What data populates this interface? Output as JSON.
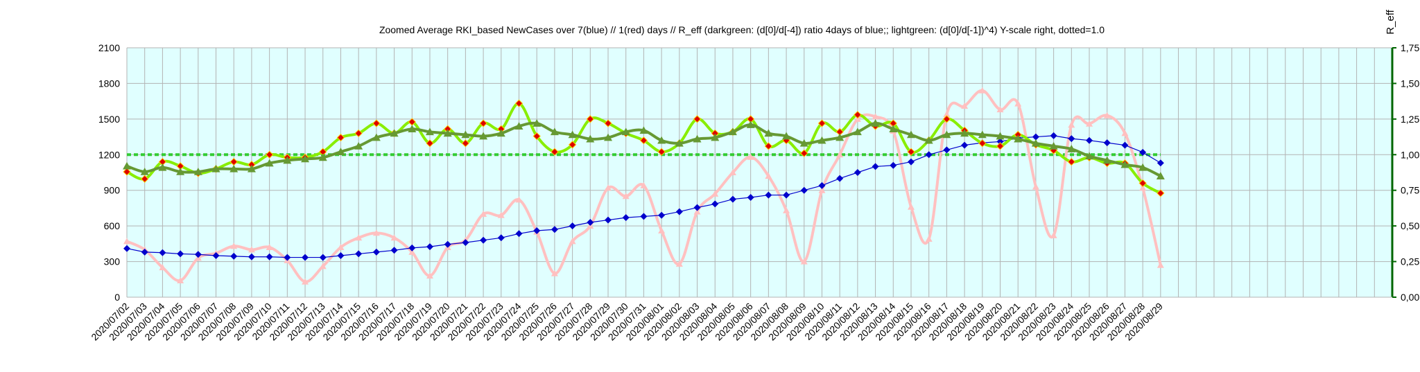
{
  "chart_data": {
    "type": "line",
    "title": "Zoomed Average RKI_based NewCases over 7(blue) // 1(red) days //  R_eff (darkgreen: (d[0]/d[-4]) ratio 4days of blue;; lightgreen: (d[0]/d[-1])^4) Y-scale right, dotted=1.0",
    "xlabel": "",
    "ylabel": "",
    "y2label": "R_eff",
    "ylim": [
      0,
      2100
    ],
    "y2lim": [
      0,
      1.75
    ],
    "yticks": [
      "0",
      "300",
      "600",
      "900",
      "1200",
      "1500",
      "1800",
      "2100"
    ],
    "y2ticks": [
      "0,00",
      "0,25",
      "0,50",
      "0,75",
      "1,00",
      "1,25",
      "1,50",
      "1,75"
    ],
    "grid": true,
    "background": "#e0ffff",
    "categories": [
      "2020/07/02",
      "2020/07/03",
      "2020/07/04",
      "2020/07/05",
      "2020/07/06",
      "2020/07/07",
      "2020/07/08",
      "2020/07/09",
      "2020/07/10",
      "2020/07/11",
      "2020/07/12",
      "2020/07/13",
      "2020/07/14",
      "2020/07/15",
      "2020/07/16",
      "2020/07/17",
      "2020/07/18",
      "2020/07/19",
      "2020/07/20",
      "2020/07/21",
      "2020/07/22",
      "2020/07/23",
      "2020/07/24",
      "2020/07/25",
      "2020/07/26",
      "2020/07/27",
      "2020/07/28",
      "2020/07/29",
      "2020/07/30",
      "2020/07/31",
      "2020/08/01",
      "2020/08/02",
      "2020/08/03",
      "2020/08/04",
      "2020/08/05",
      "2020/08/06",
      "2020/08/07",
      "2020/08/08",
      "2020/08/09",
      "2020/08/10",
      "2020/08/11",
      "2020/08/12",
      "2020/08/13",
      "2020/08/14",
      "2020/08/15",
      "2020/08/16",
      "2020/08/17",
      "2020/08/18",
      "2020/08/19",
      "2020/08/20",
      "2020/08/21",
      "2020/08/22",
      "2020/08/23",
      "2020/08/24",
      "2020/08/25",
      "2020/08/26",
      "2020/08/27",
      "2020/08/28",
      "2020/08/29"
    ],
    "empty_categories_after": 12,
    "reference_line": {
      "axis": "y2",
      "value": 1.0,
      "style": "dotted",
      "color": "#33cc33"
    },
    "series": [
      {
        "axis": "y",
        "color": "#ffc0c0",
        "marker": "triangle",
        "values": [
          470,
          400,
          250,
          140,
          330,
          370,
          430,
          400,
          420,
          310,
          130,
          260,
          420,
          500,
          540,
          500,
          380,
          180,
          420,
          480,
          700,
          690,
          820,
          550,
          200,
          470,
          600,
          920,
          850,
          940,
          560,
          280,
          720,
          870,
          1050,
          1180,
          1020,
          730,
          300,
          900,
          1200,
          1500,
          1520,
          1400,
          760,
          490,
          1540,
          1610,
          1740,
          1580,
          1630,
          930,
          520,
          1450,
          1460,
          1530,
          1380,
          920,
          270
        ]
      },
      {
        "axis": "y",
        "color": "#0000cc",
        "marker": "diamond",
        "values": [
          410,
          380,
          375,
          365,
          360,
          350,
          345,
          340,
          340,
          335,
          335,
          335,
          350,
          365,
          380,
          395,
          415,
          425,
          445,
          460,
          480,
          500,
          535,
          560,
          570,
          600,
          630,
          650,
          670,
          680,
          690,
          720,
          755,
          785,
          825,
          840,
          860,
          860,
          900,
          940,
          1000,
          1050,
          1100,
          1110,
          1140,
          1200,
          1240,
          1280,
          1300,
          1310,
          1340,
          1350,
          1360,
          1335,
          1320,
          1300,
          1280,
          1220,
          1130
        ]
      },
      {
        "axis": "y2",
        "color": "#88ee00",
        "marker": "diamond-red",
        "values": [
          0.88,
          0.83,
          0.95,
          0.92,
          0.87,
          0.9,
          0.95,
          0.93,
          1.0,
          0.98,
          0.98,
          1.02,
          1.12,
          1.15,
          1.22,
          1.15,
          1.23,
          1.08,
          1.18,
          1.08,
          1.22,
          1.18,
          1.36,
          1.13,
          1.02,
          1.07,
          1.25,
          1.22,
          1.15,
          1.1,
          1.02,
          1.08,
          1.25,
          1.15,
          1.16,
          1.25,
          1.06,
          1.1,
          1.01,
          1.22,
          1.16,
          1.28,
          1.2,
          1.22,
          1.02,
          1.1,
          1.25,
          1.17,
          1.08,
          1.06,
          1.14,
          1.07,
          1.03,
          0.95,
          0.98,
          0.94,
          0.94,
          0.8,
          0.73
        ]
      },
      {
        "axis": "y2",
        "color": "#669933",
        "marker": "triangle",
        "values": [
          0.92,
          0.88,
          0.91,
          0.88,
          0.88,
          0.9,
          0.9,
          0.9,
          0.94,
          0.96,
          0.97,
          0.98,
          1.02,
          1.06,
          1.12,
          1.15,
          1.18,
          1.16,
          1.15,
          1.14,
          1.13,
          1.15,
          1.2,
          1.22,
          1.16,
          1.14,
          1.11,
          1.12,
          1.16,
          1.17,
          1.1,
          1.08,
          1.11,
          1.12,
          1.16,
          1.21,
          1.15,
          1.13,
          1.08,
          1.1,
          1.12,
          1.16,
          1.22,
          1.18,
          1.14,
          1.1,
          1.14,
          1.15,
          1.14,
          1.13,
          1.11,
          1.08,
          1.06,
          1.04,
          0.99,
          0.96,
          0.93,
          0.91,
          0.85
        ]
      }
    ]
  }
}
